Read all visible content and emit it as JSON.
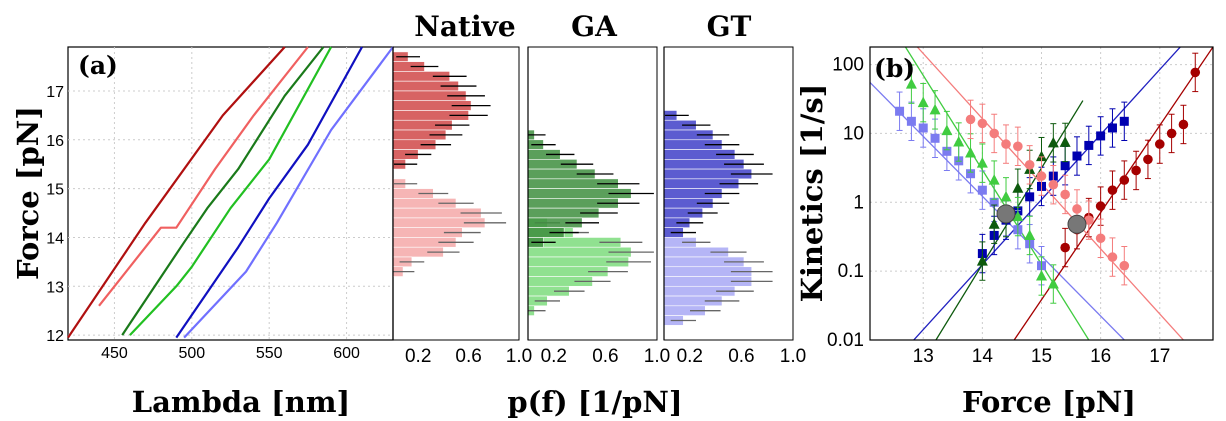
{
  "chart_data": [
    {
      "type": "line",
      "panel_label": "(a)",
      "xlabel": "Lambda [nm]",
      "ylabel": "Force [pN]",
      "xlim": [
        420,
        630
      ],
      "ylim": [
        11.9,
        17.9
      ],
      "xticks": [
        "450",
        "500",
        "550",
        "600"
      ],
      "yticks": [
        "12",
        "13",
        "14",
        "15",
        "16",
        "17"
      ],
      "grid": true,
      "series": [
        {
          "color": "#b01010",
          "points": [
            [
              420,
              11.95
            ],
            [
              470,
              14.3
            ],
            [
              520,
              16.5
            ],
            [
              560,
              17.9
            ]
          ]
        },
        {
          "color": "#f06060",
          "points": [
            [
              440,
              12.6
            ],
            [
              480,
              14.2
            ],
            [
              490,
              14.2
            ],
            [
              515,
              15.4
            ],
            [
              540,
              16.5
            ],
            [
              575,
              17.9
            ]
          ]
        },
        {
          "color": "#1a7a1a",
          "points": [
            [
              455,
              12.0
            ],
            [
              495,
              13.9
            ],
            [
              510,
              14.6
            ],
            [
              530,
              15.4
            ],
            [
              560,
              16.9
            ],
            [
              585,
              17.9
            ]
          ]
        },
        {
          "color": "#22c022",
          "points": [
            [
              460,
              12.0
            ],
            [
              490,
              13.0
            ],
            [
              500,
              13.4
            ],
            [
              525,
              14.6
            ],
            [
              550,
              15.6
            ],
            [
              590,
              17.9
            ]
          ]
        },
        {
          "color": "#1010c0",
          "points": [
            [
              490,
              11.95
            ],
            [
              530,
              13.8
            ],
            [
              550,
              14.8
            ],
            [
              575,
              15.9
            ],
            [
              610,
              17.9
            ]
          ]
        },
        {
          "color": "#7070ff",
          "points": [
            [
              495,
              11.95
            ],
            [
              535,
              13.3
            ],
            [
              555,
              14.3
            ],
            [
              590,
              16.2
            ],
            [
              630,
              17.9
            ]
          ]
        }
      ]
    },
    {
      "type": "bar",
      "title": "Native",
      "xlabel": "p(f) [1/pN]",
      "xticks": [
        "0.2",
        "0.6",
        "1.0"
      ],
      "xlim": [
        0,
        1.0
      ],
      "ylim": [
        11.9,
        17.9
      ],
      "bin_width": 0.2,
      "folded": {
        "color": "#d04848",
        "bins": [
          {
            "f": 17.7,
            "p": 0.12
          },
          {
            "f": 17.5,
            "p": 0.25
          },
          {
            "f": 17.3,
            "p": 0.45
          },
          {
            "f": 17.1,
            "p": 0.52
          },
          {
            "f": 16.9,
            "p": 0.58
          },
          {
            "f": 16.7,
            "p": 0.62
          },
          {
            "f": 16.5,
            "p": 0.6
          },
          {
            "f": 16.3,
            "p": 0.47
          },
          {
            "f": 16.1,
            "p": 0.42
          },
          {
            "f": 15.9,
            "p": 0.34
          },
          {
            "f": 15.7,
            "p": 0.2
          },
          {
            "f": 15.5,
            "p": 0.1
          }
        ]
      },
      "unfolded": {
        "color": "#f5a8a8",
        "bins": [
          {
            "f": 15.1,
            "p": 0.1
          },
          {
            "f": 14.9,
            "p": 0.32
          },
          {
            "f": 14.7,
            "p": 0.5
          },
          {
            "f": 14.5,
            "p": 0.7
          },
          {
            "f": 14.3,
            "p": 0.73
          },
          {
            "f": 14.1,
            "p": 0.55
          },
          {
            "f": 13.9,
            "p": 0.5
          },
          {
            "f": 13.7,
            "p": 0.4
          },
          {
            "f": 13.5,
            "p": 0.15
          },
          {
            "f": 13.3,
            "p": 0.08
          }
        ]
      }
    },
    {
      "type": "bar",
      "title": "GA",
      "xlim": [
        0,
        1.0
      ],
      "xticks": [
        "0.2",
        "0.6",
        "1.0"
      ],
      "ylim": [
        11.9,
        17.9
      ],
      "bin_width": 0.2,
      "folded": {
        "color": "#3e8e3e",
        "bins": [
          {
            "f": 16.1,
            "p": 0.05
          },
          {
            "f": 15.9,
            "p": 0.12
          },
          {
            "f": 15.7,
            "p": 0.25
          },
          {
            "f": 15.5,
            "p": 0.38
          },
          {
            "f": 15.3,
            "p": 0.52
          },
          {
            "f": 15.1,
            "p": 0.7
          },
          {
            "f": 14.9,
            "p": 0.8
          },
          {
            "f": 14.7,
            "p": 0.7
          },
          {
            "f": 14.5,
            "p": 0.55
          },
          {
            "f": 14.3,
            "p": 0.42
          },
          {
            "f": 14.1,
            "p": 0.28
          },
          {
            "f": 13.9,
            "p": 0.12
          }
        ]
      },
      "unfolded": {
        "color": "#7cdc7c",
        "bins": [
          {
            "f": 14.3,
            "p": 0.15
          },
          {
            "f": 14.1,
            "p": 0.35
          },
          {
            "f": 13.9,
            "p": 0.72
          },
          {
            "f": 13.7,
            "p": 0.8
          },
          {
            "f": 13.5,
            "p": 0.78
          },
          {
            "f": 13.3,
            "p": 0.62
          },
          {
            "f": 13.1,
            "p": 0.5
          },
          {
            "f": 12.9,
            "p": 0.32
          },
          {
            "f": 12.7,
            "p": 0.15
          },
          {
            "f": 12.5,
            "p": 0.05
          }
        ]
      }
    },
    {
      "type": "bar",
      "title": "GT",
      "xlim": [
        0,
        1.0
      ],
      "xticks": [
        "0.2",
        "0.6",
        "1.0"
      ],
      "ylim": [
        11.9,
        17.9
      ],
      "bin_width": 0.2,
      "folded": {
        "color": "#4040c8",
        "bins": [
          {
            "f": 16.5,
            "p": 0.1
          },
          {
            "f": 16.3,
            "p": 0.25
          },
          {
            "f": 16.1,
            "p": 0.38
          },
          {
            "f": 15.9,
            "p": 0.45
          },
          {
            "f": 15.7,
            "p": 0.55
          },
          {
            "f": 15.5,
            "p": 0.62
          },
          {
            "f": 15.3,
            "p": 0.68
          },
          {
            "f": 15.1,
            "p": 0.58
          },
          {
            "f": 14.9,
            "p": 0.45
          },
          {
            "f": 14.7,
            "p": 0.38
          },
          {
            "f": 14.5,
            "p": 0.3
          },
          {
            "f": 14.3,
            "p": 0.2
          },
          {
            "f": 14.1,
            "p": 0.15
          }
        ]
      },
      "unfolded": {
        "color": "#a8a8f5",
        "bins": [
          {
            "f": 13.9,
            "p": 0.25
          },
          {
            "f": 13.7,
            "p": 0.5
          },
          {
            "f": 13.5,
            "p": 0.62
          },
          {
            "f": 13.3,
            "p": 0.68
          },
          {
            "f": 13.1,
            "p": 0.68
          },
          {
            "f": 12.9,
            "p": 0.55
          },
          {
            "f": 12.7,
            "p": 0.45
          },
          {
            "f": 12.5,
            "p": 0.32
          },
          {
            "f": 12.3,
            "p": 0.15
          }
        ]
      }
    },
    {
      "type": "scatter",
      "panel_label": "(b)",
      "xlabel": "Force [pN]",
      "ylabel": "Kinetics [1/s]",
      "xlim": [
        12.1,
        17.9
      ],
      "ylim": [
        0.01,
        180
      ],
      "xticks": [
        "13",
        "14",
        "15",
        "16",
        "17"
      ],
      "yticks": [
        "0.01",
        "0.1",
        "1",
        "10",
        "100"
      ],
      "yscale": "log",
      "grid": true,
      "series": [
        {
          "marker": "square",
          "color": "#0000b0",
          "x": [
            14.0,
            14.2,
            14.4,
            14.6,
            14.8,
            15.0,
            15.2,
            15.4,
            15.6,
            15.8,
            16.0,
            16.2,
            16.4
          ],
          "y": [
            0.18,
            0.33,
            0.55,
            0.75,
            1.2,
            1.7,
            2.4,
            3.4,
            4.7,
            6.7,
            9.2,
            12.0,
            15.0
          ]
        },
        {
          "marker": "square",
          "color": "#7b7bf0",
          "x": [
            12.6,
            12.8,
            13.0,
            13.2,
            13.4,
            13.6,
            13.8,
            14.0,
            14.2,
            14.4,
            14.6,
            14.8,
            15.0
          ],
          "y": [
            21,
            15,
            12,
            8.5,
            5.5,
            4.0,
            2.6,
            1.5,
            1.0,
            0.62,
            0.4,
            0.25,
            0.12
          ]
        },
        {
          "marker": "triangle",
          "color": "#0d5a0d",
          "x": [
            14.0,
            14.2,
            14.4,
            14.6,
            14.8,
            15.0,
            15.2,
            15.4
          ],
          "y": [
            0.14,
            0.48,
            0.6,
            1.6,
            3.0,
            4.6,
            7.3,
            7.4
          ]
        },
        {
          "marker": "triangle",
          "color": "#40cc40",
          "x": [
            12.8,
            13.0,
            13.2,
            13.4,
            13.6,
            13.8,
            14.0,
            14.2,
            14.4,
            14.6,
            14.8,
            15.0,
            15.2
          ],
          "y": [
            52,
            28,
            22,
            11,
            7.5,
            5.2,
            3.7,
            2.1,
            1.2,
            0.62,
            0.33,
            0.085,
            0.065
          ]
        },
        {
          "marker": "circle",
          "color": "#a50000",
          "x": [
            15.4,
            15.6,
            15.8,
            16.0,
            16.2,
            16.4,
            16.6,
            16.8,
            17.0,
            17.2,
            17.4,
            17.6
          ],
          "y": [
            0.22,
            0.4,
            0.6,
            0.88,
            1.5,
            2.1,
            2.9,
            4.2,
            7.0,
            10.0,
            13.5,
            77.0
          ]
        },
        {
          "marker": "circle",
          "color": "#f47c7c",
          "x": [
            13.8,
            14.0,
            14.2,
            14.4,
            14.6,
            14.8,
            15.0,
            15.2,
            15.4,
            15.6,
            15.8,
            16.0,
            16.2,
            16.4
          ],
          "y": [
            16,
            14,
            10,
            7.0,
            6.5,
            3.5,
            2.4,
            1.8,
            1.3,
            0.8,
            0.55,
            0.3,
            0.16,
            0.12
          ]
        },
        {
          "marker": "big-circle",
          "color": "#777777",
          "x": [
            14.4,
            15.6
          ],
          "y": [
            0.68,
            0.48
          ]
        }
      ],
      "fits": [
        {
          "color": "#2020c0",
          "from": [
            12.1,
            0.002
          ],
          "to": [
            17.9,
            600
          ]
        },
        {
          "color": "#7b7bf0",
          "from": [
            12.1,
            55
          ],
          "to": [
            16.4,
            0.01
          ]
        },
        {
          "color": "#0d5a0d",
          "from": [
            13.0,
            0.005
          ],
          "to": [
            15.7,
            30
          ]
        },
        {
          "color": "#40cc40",
          "from": [
            12.7,
            180
          ],
          "to": [
            15.8,
            0.01
          ]
        },
        {
          "color": "#a50000",
          "from": [
            14.3,
            0.005
          ],
          "to": [
            17.9,
            180
          ]
        },
        {
          "color": "#f47c7c",
          "from": [
            12.9,
            180
          ],
          "to": [
            17.4,
            0.01
          ]
        }
      ]
    }
  ]
}
